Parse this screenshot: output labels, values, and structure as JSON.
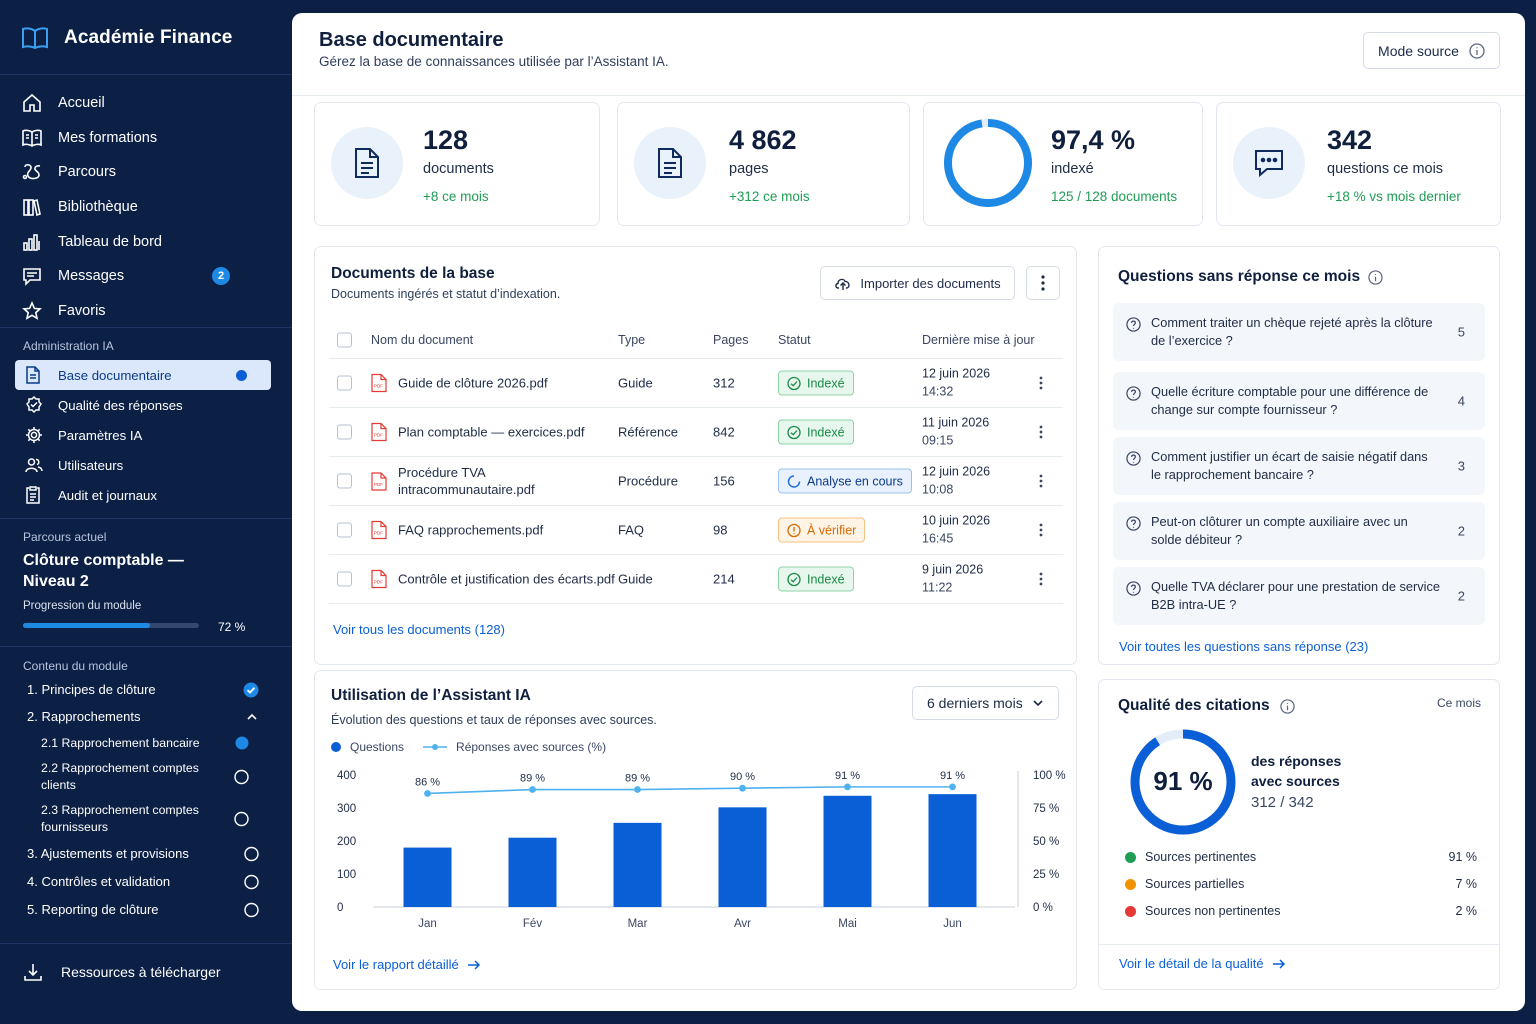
{
  "app": {
    "name": "Académie Finance"
  },
  "sidebar": {
    "nav": [
      {
        "label": "Accueil",
        "icon": "home-icon"
      },
      {
        "label": "Mes formations",
        "icon": "book-icon"
      },
      {
        "label": "Parcours",
        "icon": "route-icon"
      },
      {
        "label": "Bibliothèque",
        "icon": "library-icon"
      },
      {
        "label": "Tableau de bord",
        "icon": "bar-chart-icon"
      },
      {
        "label": "Messages",
        "icon": "message-icon",
        "badge": "2"
      },
      {
        "label": "Favoris",
        "icon": "star-icon"
      }
    ],
    "admin_title": "Administration IA",
    "admin": [
      {
        "label": "Base documentaire",
        "icon": "document-icon",
        "active": true
      },
      {
        "label": "Qualité des réponses",
        "icon": "quality-badge-icon"
      },
      {
        "label": "Paramètres IA",
        "icon": "gear-icon"
      },
      {
        "label": "Utilisateurs",
        "icon": "users-icon"
      },
      {
        "label": "Audit et journaux",
        "icon": "clipboard-icon"
      }
    ],
    "course": {
      "section_label": "Parcours actuel",
      "title": "Clôture comptable — Niveau 2",
      "progress_label": "Progression du module",
      "progress": 72,
      "progress_text": "72 %"
    },
    "module_title": "Contenu du module",
    "module": [
      {
        "label": "1. Principes de clôture",
        "state": "done"
      },
      {
        "label": "2. Rapprochements",
        "state": "expanded"
      },
      {
        "label": "2.1 Rapprochement bancaire",
        "state": "current",
        "sub": true
      },
      {
        "label": "2.2 Rapprochement comptes clients",
        "state": "todo",
        "sub": true
      },
      {
        "label": "2.3 Rapprochement comptes fournisseurs",
        "state": "todo",
        "sub": true
      },
      {
        "label": "3. Ajustements et provisions",
        "state": "todo"
      },
      {
        "label": "4. Contrôles et validation",
        "state": "todo"
      },
      {
        "label": "5. Reporting de clôture",
        "state": "todo"
      }
    ],
    "resources_label": "Ressources à télécharger"
  },
  "header": {
    "title": "Base documentaire",
    "subtitle": "Gérez la base de connaissances utilisée par l’Assistant IA.",
    "mode_button": "Mode source"
  },
  "stats": [
    {
      "value": "128",
      "label": "documents",
      "delta": "+8 ce mois",
      "icon": "document-icon"
    },
    {
      "value": "4 862",
      "label": "pages",
      "delta": "+312 ce mois",
      "icon": "page-icon"
    },
    {
      "value": "97,4 %",
      "label": "indexé",
      "delta": "125 / 128 documents",
      "ring": 97.4
    },
    {
      "value": "342",
      "label": "questions ce mois",
      "delta": "+18 % vs mois dernier",
      "icon": "chat-icon"
    }
  ],
  "documents": {
    "title": "Documents de la base",
    "subtitle": "Documents ingérés et statut d’indexation.",
    "import_label": "Importer des documents",
    "columns": [
      "Nom du document",
      "Type",
      "Pages",
      "Statut",
      "Dernière mise à jour"
    ],
    "rows": [
      {
        "name": "Guide de clôture 2026.pdf",
        "type": "Guide",
        "pages": "312",
        "status": "Indexé",
        "status_kind": "ok",
        "date": "12 juin 2026",
        "time": "14:32"
      },
      {
        "name": "Plan comptable — exercices.pdf",
        "type": "Référence",
        "pages": "842",
        "status": "Indexé",
        "status_kind": "ok",
        "date": "11 juin 2026",
        "time": "09:15"
      },
      {
        "name": "Procédure TVA intracommunautaire.pdf",
        "type": "Procédure",
        "pages": "156",
        "status": "Analyse en cours",
        "status_kind": "run",
        "date": "12 juin 2026",
        "time": "10:08"
      },
      {
        "name": "FAQ rapprochements.pdf",
        "type": "FAQ",
        "pages": "98",
        "status": "À vérifier",
        "status_kind": "warn",
        "date": "10 juin 2026",
        "time": "16:45"
      },
      {
        "name": "Contrôle et justification des écarts.pdf",
        "type": "Guide",
        "pages": "214",
        "status": "Indexé",
        "status_kind": "ok",
        "date": "9 juin 2026",
        "time": "11:22"
      }
    ],
    "view_all": "Voir tous les documents (128)"
  },
  "questions": {
    "title": "Questions sans réponse ce mois",
    "items": [
      {
        "text": "Comment traiter un chèque rejeté après la clôture de l’exercice ?",
        "count": "5"
      },
      {
        "text": "Quelle écriture comptable pour une différence de change sur compte fournisseur ?",
        "count": "4"
      },
      {
        "text": "Comment justifier un écart de saisie négatif dans le rapprochement bancaire ?",
        "count": "3"
      },
      {
        "text": "Peut-on clôturer un compte auxiliaire avec un solde débiteur ?",
        "count": "2"
      },
      {
        "text": "Quelle TVA déclarer pour une prestation de service B2B intra-UE ?",
        "count": "2"
      }
    ],
    "view_all": "Voir toutes les questions sans réponse (23)"
  },
  "usage": {
    "title": "Utilisation de l’Assistant IA",
    "subtitle": "Évolution des questions et taux de réponses avec sources.",
    "period": "6 derniers mois",
    "link": "Voir le rapport détaillé"
  },
  "chart_data": {
    "type": "bar",
    "categories": [
      "Jan",
      "Fév",
      "Mar",
      "Avr",
      "Mai",
      "Jun"
    ],
    "series": [
      {
        "name": "Questions",
        "type": "bar",
        "values": [
          180,
          210,
          255,
          302,
          337,
          342
        ],
        "color": "#0b5fd6"
      },
      {
        "name": "Réponses avec sources (%)",
        "type": "line",
        "values": [
          86,
          89,
          89,
          90,
          91,
          91
        ],
        "color": "#4fb2ee"
      }
    ],
    "point_labels": [
      "86 %",
      "89 %",
      "89 %",
      "90 %",
      "91 %",
      "91 %"
    ],
    "ylim": [
      0,
      400
    ],
    "yticks": [
      "0",
      "100",
      "200",
      "300",
      "400"
    ],
    "y2lim": [
      0,
      100
    ],
    "y2ticks": [
      "0 %",
      "25 %",
      "50 %",
      "75 %",
      "100 %"
    ],
    "legend": "top-left",
    "grid": false
  },
  "quality": {
    "title": "Qualité des citations",
    "period": "Ce mois",
    "percent": 91,
    "percent_text": "91 %",
    "caption": "des réponses avec sources",
    "ratio": "312 / 342",
    "legend": [
      {
        "label": "Sources pertinentes",
        "value": "91 %",
        "color": "#1f9d55"
      },
      {
        "label": "Sources partielles",
        "value": "7 %",
        "color": "#f39200"
      },
      {
        "label": "Sources non pertinentes",
        "value": "2 %",
        "color": "#e53935"
      }
    ],
    "link": "Voir le détail de la qualité"
  },
  "colors": {
    "accent": "#0b5fd6",
    "sidebar": "#0c1f45",
    "success": "#1f9d55",
    "warning": "#f39200",
    "light_blue": "#4fb2ee"
  }
}
